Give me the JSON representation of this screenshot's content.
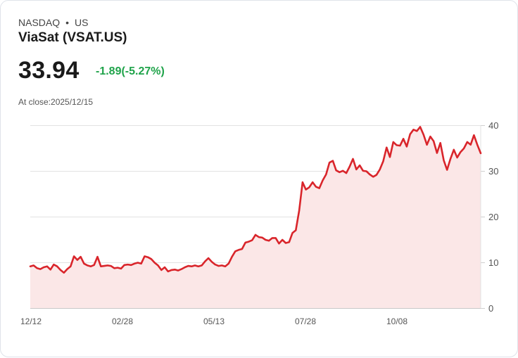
{
  "header": {
    "exchange": "NASDAQ",
    "separator": "•",
    "region": "US",
    "title": "ViaSat (VSAT.US)"
  },
  "quote": {
    "price": "33.94",
    "change": "-1.89(-5.27%)",
    "at_close": "At close:2025/12/15"
  },
  "colors": {
    "line": "#d9252b",
    "fill": "#fbe7e7",
    "change": "#1fa34a",
    "grid": "#e2e2e2"
  },
  "chart_data": {
    "type": "area",
    "title": "ViaSat (VSAT.US)",
    "xlabel": "",
    "ylabel": "",
    "ylim": [
      0,
      40
    ],
    "y_ticks": [
      0,
      10,
      20,
      30,
      40
    ],
    "x_tick_labels": [
      "12/12",
      "02/28",
      "05/13",
      "07/28",
      "10/08"
    ],
    "grid": true,
    "y_axis_position": "right",
    "series": [
      {
        "name": "VSAT.US",
        "values": [
          9.2,
          9.4,
          8.8,
          8.6,
          9.0,
          9.2,
          8.5,
          9.6,
          9.2,
          8.4,
          7.8,
          8.6,
          9.2,
          11.4,
          10.6,
          11.3,
          9.8,
          9.4,
          9.2,
          9.5,
          11.3,
          9.2,
          9.3,
          9.4,
          9.3,
          8.8,
          8.9,
          8.7,
          9.5,
          9.6,
          9.5,
          9.8,
          10.0,
          9.8,
          11.4,
          11.2,
          10.8,
          10.0,
          9.4,
          8.4,
          9.0,
          8.1,
          8.4,
          8.5,
          8.3,
          8.6,
          9.0,
          9.3,
          9.2,
          9.4,
          9.2,
          9.4,
          10.3,
          11.0,
          10.2,
          9.6,
          9.3,
          9.4,
          9.2,
          9.8,
          11.3,
          12.5,
          12.8,
          13.0,
          14.4,
          14.6,
          14.9,
          16.1,
          15.6,
          15.5,
          15.0,
          14.8,
          15.4,
          15.4,
          14.2,
          15.0,
          14.3,
          14.5,
          16.5,
          17.1,
          21.4,
          27.6,
          26.0,
          26.5,
          27.6,
          26.6,
          26.3,
          28.0,
          29.3,
          31.9,
          32.3,
          30.2,
          29.8,
          30.1,
          29.6,
          31.0,
          32.7,
          30.4,
          31.3,
          30.1,
          30.0,
          29.3,
          28.8,
          29.2,
          30.4,
          32.2,
          35.2,
          33.1,
          36.4,
          35.7,
          35.6,
          37.1,
          35.4,
          38.1,
          39.1,
          38.8,
          39.7,
          38.0,
          35.8,
          37.6,
          36.6,
          34.0,
          36.2,
          32.4,
          30.3,
          32.7,
          34.7,
          33.0,
          34.2,
          35.0,
          36.4,
          35.8,
          37.9,
          35.8,
          33.94
        ]
      }
    ]
  }
}
